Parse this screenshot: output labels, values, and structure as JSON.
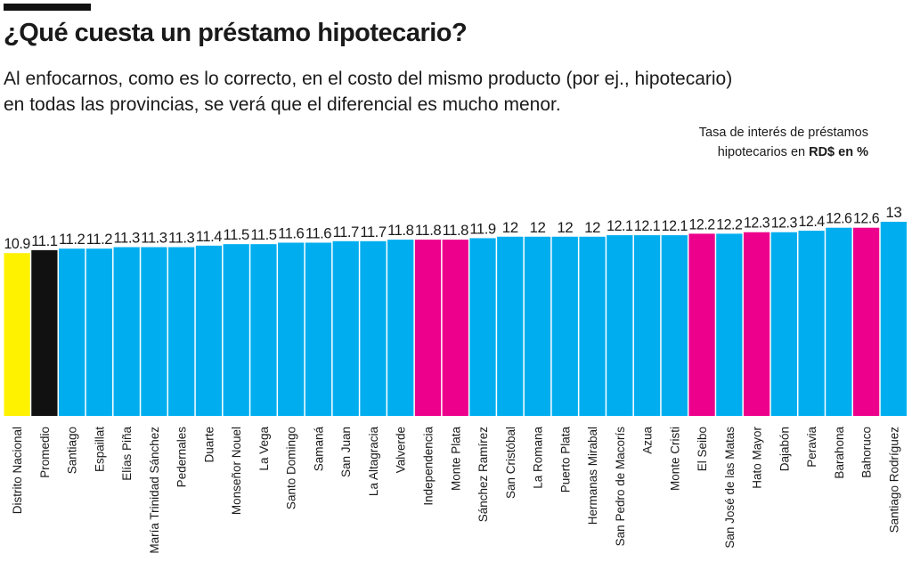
{
  "chart_data": {
    "type": "bar",
    "title": "¿Qué cuesta un préstamo hipotecario?",
    "subtitle": [
      "Al enfocarnos, como es lo correcto, en el costo del mismo producto (por ej., hipotecario)",
      "en todas las provincias, se verá que el diferencial es mucho menor."
    ],
    "note": [
      "Tasa de interés de préstamos",
      "hipotecarios en",
      "RD$ en %"
    ],
    "categories": [
      "Distrito Nacional",
      "Promedio",
      "Santiago",
      "Espaillat",
      "Elías Piña",
      "María Trinidad Sánchez",
      "Pedernales",
      "Duarte",
      "Monseñor Nouel",
      "La Vega",
      "Santo Domingo",
      "Samaná",
      "San Juan",
      "La Altagracia",
      "Valverde",
      "Independencia",
      "Monte Plata",
      "Sánchez Ramírez",
      "San Cristóbal",
      "La Romana",
      "Puerto Plata",
      "Hermanas Mirabal",
      "San Pedro de Macorís",
      "Azua",
      "Monte Cristi",
      "El Seibo",
      "San José de las Matas",
      "Hato Mayor",
      "Dajabón",
      "Peravia",
      "Barahona",
      "Bahoruco",
      "Santiago Rodríguez"
    ],
    "values": [
      10.9,
      11.1,
      11.2,
      11.2,
      11.3,
      11.3,
      11.3,
      11.4,
      11.5,
      11.5,
      11.6,
      11.6,
      11.7,
      11.7,
      11.8,
      11.8,
      11.8,
      11.9,
      12,
      12,
      12,
      12,
      12.1,
      12.1,
      12.1,
      12.2,
      12.2,
      12.3,
      12.3,
      12.4,
      12.6,
      12.6,
      13
    ],
    "colors": [
      "#fff200",
      "#111111",
      "#00aeef",
      "#00aeef",
      "#00aeef",
      "#00aeef",
      "#00aeef",
      "#00aeef",
      "#00aeef",
      "#00aeef",
      "#00aeef",
      "#00aeef",
      "#00aeef",
      "#00aeef",
      "#00aeef",
      "#ec008c",
      "#ec008c",
      "#00aeef",
      "#00aeef",
      "#00aeef",
      "#00aeef",
      "#00aeef",
      "#00aeef",
      "#00aeef",
      "#00aeef",
      "#ec008c",
      "#00aeef",
      "#ec008c",
      "#00aeef",
      "#00aeef",
      "#00aeef",
      "#ec008c",
      "#00aeef"
    ],
    "ylim": [
      0,
      13
    ]
  }
}
